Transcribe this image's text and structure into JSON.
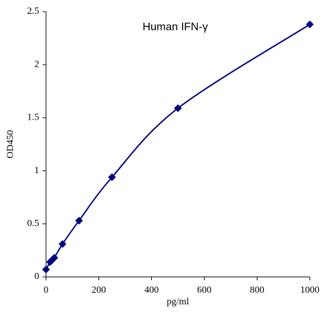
{
  "chart_data": {
    "type": "scatter",
    "title": "Human IFN-γ",
    "x_label": "pg/ml",
    "y_label": "OD450",
    "x": [
      0,
      15.6,
      23.4,
      31.25,
      62.5,
      125,
      250,
      500,
      1000
    ],
    "series": [
      {
        "name": "OD450",
        "color": "#000080",
        "values": [
          0.07,
          0.14,
          0.16,
          0.18,
          0.31,
          0.53,
          0.94,
          1.59,
          2.38
        ]
      }
    ],
    "xlim": [
      0,
      1000
    ],
    "xticks": [
      0,
      200,
      400,
      600,
      800,
      1000
    ],
    "ylim": [
      0,
      2.5
    ],
    "yticks": [
      0,
      0.5,
      1,
      1.5,
      2,
      2.5
    ],
    "smooth_line": true
  }
}
